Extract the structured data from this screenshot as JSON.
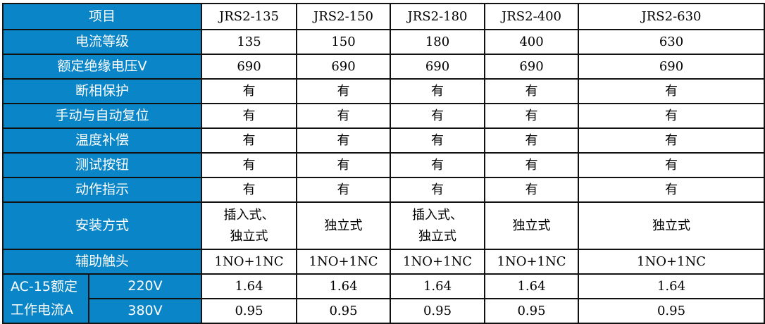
{
  "colors": {
    "header_bg": "#0A86C8"
  },
  "header": {
    "label": "项目",
    "models": [
      "JRS2-135",
      "JRS2-150",
      "JRS2-180",
      "JRS2-400",
      "JRS2-630"
    ]
  },
  "rows": [
    {
      "label": "电流等级",
      "values": [
        "135",
        "150",
        "180",
        "400",
        "630"
      ]
    },
    {
      "label": "额定绝缘电压V",
      "values": [
        "690",
        "690",
        "690",
        "690",
        "690"
      ]
    },
    {
      "label": "断相保护",
      "values": [
        "有",
        "有",
        "有",
        "有",
        "有"
      ]
    },
    {
      "label": "手动与自动复位",
      "values": [
        "有",
        "有",
        "有",
        "有",
        "有"
      ]
    },
    {
      "label": "温度补偿",
      "values": [
        "有",
        "有",
        "有",
        "有",
        "有"
      ]
    },
    {
      "label": "测试按钮",
      "values": [
        "有",
        "有",
        "有",
        "有",
        "有"
      ]
    },
    {
      "label": "动作指示",
      "values": [
        "有",
        "有",
        "有",
        "有",
        "有"
      ]
    }
  ],
  "install": {
    "label": "安装方式",
    "values": [
      [
        "插入式、",
        "独立式"
      ],
      [
        "独立式"
      ],
      [
        "插入式、",
        "独立式"
      ],
      [
        "独立式"
      ],
      [
        "独立式"
      ]
    ]
  },
  "aux": {
    "label": "辅助触头",
    "values": [
      "1NO+1NC",
      "1NO+1NC",
      "1NO+1NC",
      "1NO+1NC",
      "1NO+1NC"
    ]
  },
  "ac15": {
    "label_line1": "AC-15额定",
    "label_line2": "工作电流A",
    "rows": [
      {
        "voltage": "220V",
        "values": [
          "1.64",
          "1.64",
          "1.64",
          "1.64",
          "1.64"
        ]
      },
      {
        "voltage": "380V",
        "values": [
          "0.95",
          "0.95",
          "0.95",
          "0.95",
          "0.95"
        ]
      }
    ]
  }
}
